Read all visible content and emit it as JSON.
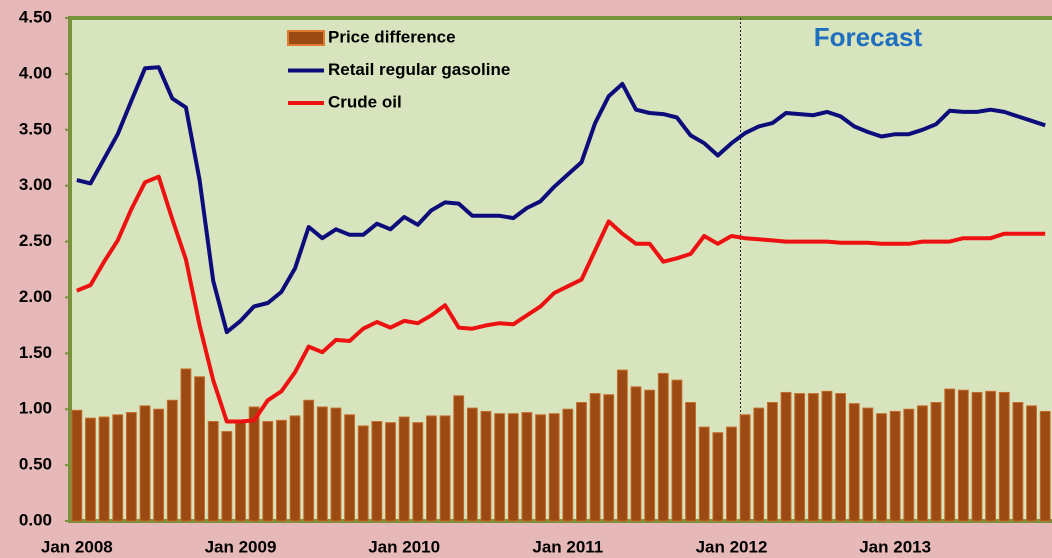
{
  "chart_data": {
    "type": "bar_line",
    "annotation": "Forecast",
    "categories": [
      "Jan 2008",
      null,
      null,
      null,
      null,
      null,
      null,
      null,
      null,
      null,
      null,
      null,
      "Jan 2009",
      null,
      null,
      null,
      null,
      null,
      null,
      null,
      null,
      null,
      null,
      null,
      "Jan 2010",
      null,
      null,
      null,
      null,
      null,
      null,
      null,
      null,
      null,
      null,
      null,
      "Jan 2011",
      null,
      null,
      null,
      null,
      null,
      null,
      null,
      null,
      null,
      null,
      null,
      "Jan 2012",
      null,
      null,
      null,
      null,
      null,
      null,
      null,
      null,
      null,
      null,
      null,
      "Jan 2013",
      null,
      null,
      null,
      null,
      null,
      null,
      null,
      null,
      null,
      null,
      null
    ],
    "series": [
      {
        "name": "Price difference",
        "kind": "bar",
        "color": "#9a4a12",
        "values": [
          0.99,
          0.92,
          0.93,
          0.95,
          0.97,
          1.03,
          1.0,
          1.08,
          1.36,
          1.29,
          0.89,
          0.8,
          0.9,
          1.02,
          0.89,
          0.9,
          0.94,
          1.08,
          1.02,
          1.01,
          0.95,
          0.85,
          0.89,
          0.88,
          0.93,
          0.88,
          0.94,
          0.94,
          1.12,
          1.01,
          0.98,
          0.96,
          0.96,
          0.97,
          0.95,
          0.96,
          1.0,
          1.06,
          1.14,
          1.13,
          1.35,
          1.2,
          1.17,
          1.32,
          1.26,
          1.06,
          0.84,
          0.79,
          0.84,
          0.95,
          1.01,
          1.06,
          1.15,
          1.14,
          1.14,
          1.16,
          1.14,
          1.05,
          1.01,
          0.96,
          0.98,
          1.0,
          1.03,
          1.06,
          1.18,
          1.17,
          1.15,
          1.16,
          1.15,
          1.06,
          1.03,
          0.98
        ]
      },
      {
        "name": "Retail regular gasoline",
        "kind": "line",
        "color": "#0c0c7a",
        "values": [
          3.05,
          3.02,
          3.24,
          3.46,
          3.76,
          4.05,
          4.06,
          3.78,
          3.7,
          3.05,
          2.15,
          1.69,
          1.79,
          1.92,
          1.95,
          2.05,
          2.26,
          2.63,
          2.53,
          2.61,
          2.56,
          2.56,
          2.66,
          2.61,
          2.72,
          2.65,
          2.78,
          2.85,
          2.84,
          2.73,
          2.73,
          2.73,
          2.71,
          2.8,
          2.86,
          2.99,
          3.1,
          3.21,
          3.56,
          3.8,
          3.91,
          3.68,
          3.65,
          3.64,
          3.61,
          3.45,
          3.38,
          3.27,
          3.38,
          3.47,
          3.53,
          3.56,
          3.65,
          3.64,
          3.63,
          3.66,
          3.62,
          3.53,
          3.48,
          3.44,
          3.46,
          3.46,
          3.5,
          3.55,
          3.67,
          3.66,
          3.66,
          3.68,
          3.66,
          3.62,
          3.58,
          3.54
        ]
      },
      {
        "name": "Crude oil",
        "kind": "line",
        "color": "#ee1111",
        "values": [
          2.06,
          2.11,
          2.32,
          2.51,
          2.79,
          3.03,
          3.08,
          2.7,
          2.34,
          1.75,
          1.26,
          0.89,
          0.89,
          0.9,
          1.08,
          1.16,
          1.33,
          1.56,
          1.51,
          1.62,
          1.61,
          1.72,
          1.78,
          1.73,
          1.79,
          1.77,
          1.84,
          1.93,
          1.73,
          1.72,
          1.75,
          1.77,
          1.76,
          1.84,
          1.92,
          2.04,
          2.1,
          2.16,
          2.42,
          2.68,
          2.57,
          2.48,
          2.48,
          2.32,
          2.35,
          2.39,
          2.55,
          2.48,
          2.55,
          2.53,
          2.52,
          2.51,
          2.5,
          2.5,
          2.5,
          2.5,
          2.49,
          2.49,
          2.49,
          2.48,
          2.48,
          2.48,
          2.5,
          2.5,
          2.5,
          2.53,
          2.53,
          2.53,
          2.57,
          2.57,
          2.57,
          2.57
        ]
      }
    ],
    "ylim": [
      0,
      4.5
    ],
    "yticks": [
      {
        "value": 0,
        "label": "0.00"
      },
      {
        "value": 0.5,
        "label": "0.50"
      },
      {
        "value": 1,
        "label": "1.00"
      },
      {
        "value": 1.5,
        "label": "1.50"
      },
      {
        "value": 2,
        "label": "2.00"
      },
      {
        "value": 2.5,
        "label": "2.50"
      },
      {
        "value": 3,
        "label": "3.00"
      },
      {
        "value": 3.5,
        "label": "3.50"
      },
      {
        "value": 4,
        "label": "4.00"
      },
      {
        "value": 4.5,
        "label": "4.50"
      }
    ]
  }
}
